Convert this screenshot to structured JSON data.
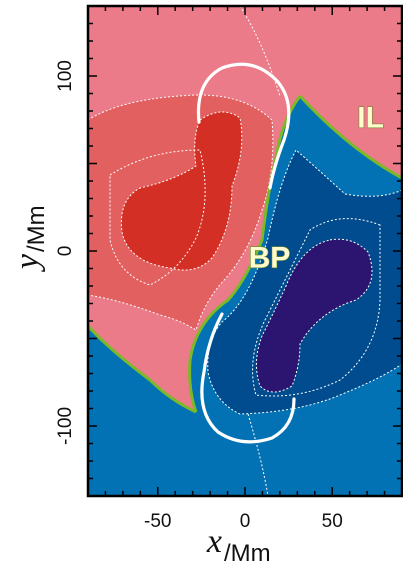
{
  "chart_data": {
    "type": "heatmap",
    "title": "",
    "xlabel": {
      "var": "x",
      "unit": "/Mm"
    },
    "ylabel": {
      "var": "y",
      "unit": "/Mm"
    },
    "xlim": [
      -90,
      90
    ],
    "ylim": [
      -140,
      140
    ],
    "x_ticks": [
      -50,
      0,
      50
    ],
    "y_ticks": [
      -100,
      0,
      100
    ],
    "x_tick_labels": [
      "-50",
      "0",
      "50"
    ],
    "y_tick_labels": [
      "-100",
      "0",
      "100"
    ],
    "annotations": [
      {
        "text": "IL",
        "x": 72,
        "y": 75
      },
      {
        "text": "BP",
        "x": 14,
        "y": -5
      }
    ],
    "colors": {
      "positive_light": "#eb7b88",
      "positive_mid": "#e2605f",
      "positive_dark": "#d42f24",
      "negative_light": "#0272b4",
      "negative_mid": "#014c8e",
      "negative_dark": "#2c1570",
      "polarity_inversion_line": "#7cb928",
      "contours": "#ffffff"
    }
  }
}
